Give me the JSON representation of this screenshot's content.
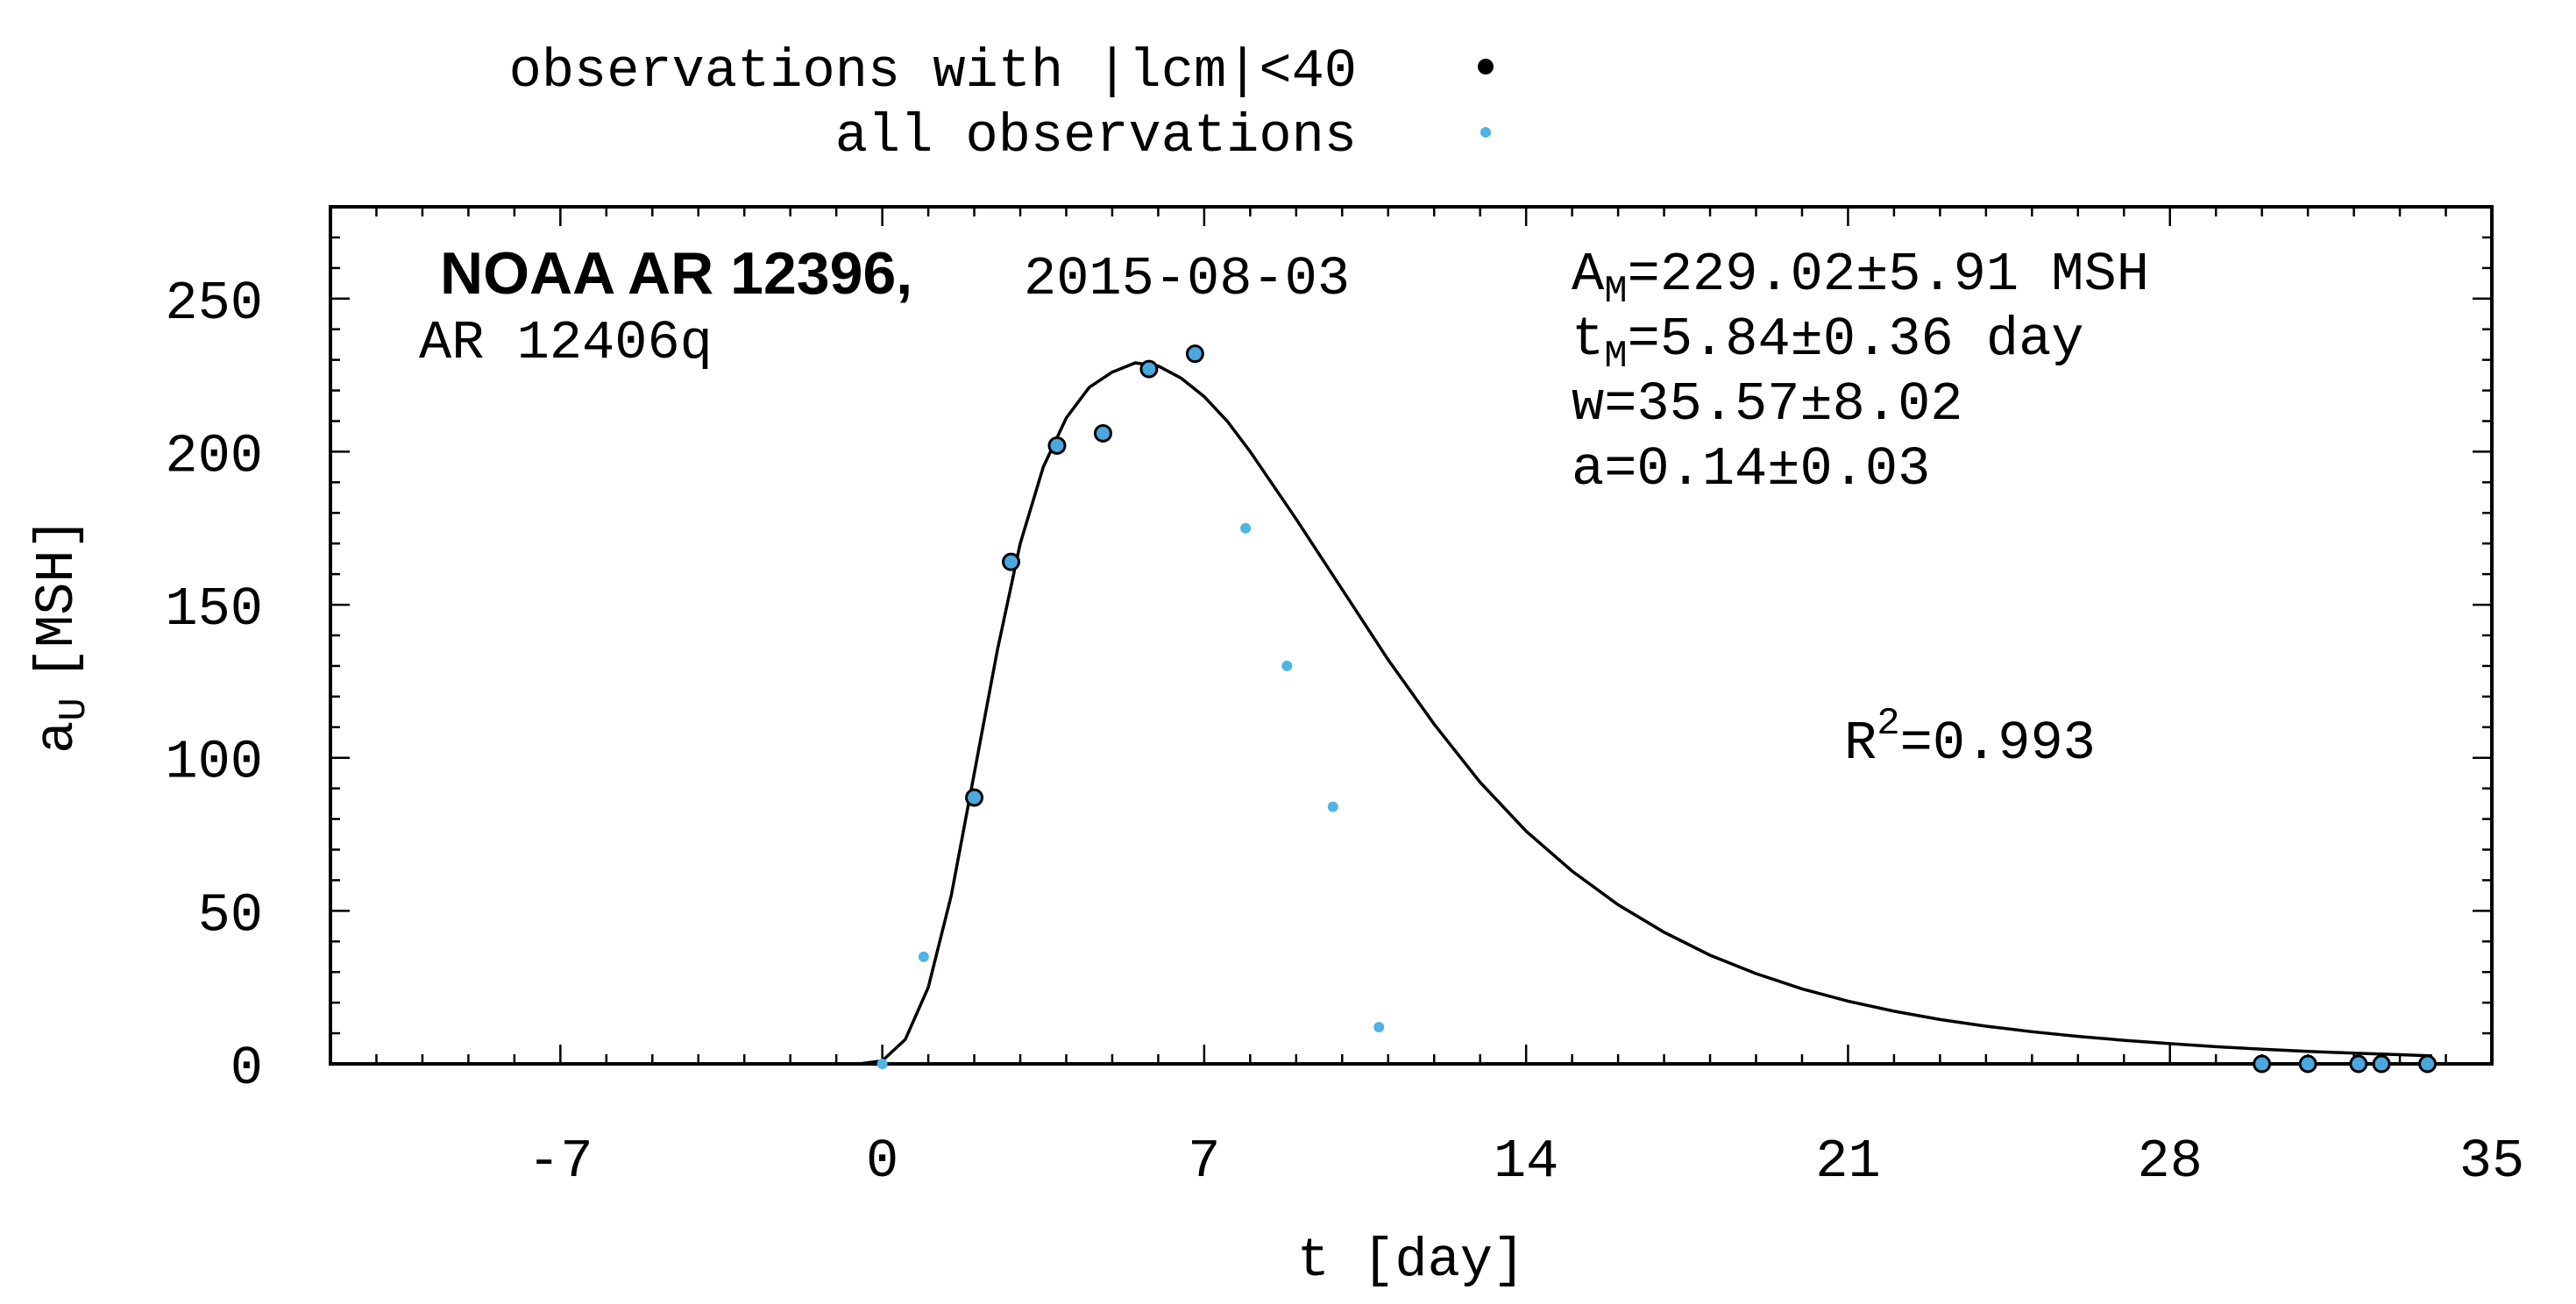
{
  "chart_data": {
    "type": "scatter",
    "title": "NOAA AR 12396,",
    "date": "2015-08-03",
    "subtitle": "AR 12406q",
    "xlabel": "t [day]",
    "ylabel_main": "a",
    "ylabel_sub": "U",
    "ylabel_unit": "[MSH]",
    "xlim": [
      -12,
      35
    ],
    "ylim": [
      0,
      280
    ],
    "xticks": [
      -7,
      0,
      7,
      14,
      21,
      28,
      35
    ],
    "yticks": [
      0,
      50,
      100,
      150,
      200,
      250
    ],
    "legend": {
      "placement": "top",
      "entries": [
        {
          "label": "observations with |lcm|<40",
          "marker": "black-dot"
        },
        {
          "label": "all observations",
          "marker": "blue-dot"
        }
      ]
    },
    "fit_params": [
      {
        "main": "A",
        "sub": "M",
        "rest": "=229.02±5.91 MSH"
      },
      {
        "main": "t",
        "sub": "M",
        "rest": "=5.84±0.36 day"
      },
      {
        "main": "w",
        "sub": "",
        "rest": "=35.57±8.02"
      },
      {
        "main": "a",
        "sub": "",
        "rest": "=0.14±0.03"
      }
    ],
    "r2": {
      "base": "R",
      "sup": "2",
      "rest": "=0.993"
    },
    "series": [
      {
        "role": "observations with |lcm|<40",
        "color": "#4aa8de",
        "edge": "#000000",
        "points": [
          [
            2.0,
            87
          ],
          [
            2.8,
            164
          ],
          [
            3.8,
            202
          ],
          [
            4.8,
            206
          ],
          [
            5.8,
            227
          ],
          [
            6.8,
            232
          ],
          [
            30.0,
            0
          ],
          [
            31.0,
            0
          ],
          [
            32.1,
            0
          ],
          [
            32.6,
            0
          ],
          [
            33.6,
            0
          ]
        ]
      },
      {
        "role": "all observations",
        "color": "#4fb3e3",
        "points": [
          [
            0.0,
            0
          ],
          [
            0.9,
            35
          ],
          [
            7.9,
            175
          ],
          [
            8.8,
            130
          ],
          [
            9.8,
            84
          ],
          [
            10.8,
            12
          ]
        ]
      }
    ],
    "fit_curve": {
      "color": "#000000",
      "points": [
        [
          -12,
          0
        ],
        [
          -0.5,
          0
        ],
        [
          0,
          1
        ],
        [
          0.5,
          8
        ],
        [
          1,
          25
        ],
        [
          1.5,
          55
        ],
        [
          2,
          95
        ],
        [
          2.5,
          135
        ],
        [
          3,
          170
        ],
        [
          3.5,
          195
        ],
        [
          4,
          211
        ],
        [
          4.5,
          221
        ],
        [
          5,
          226
        ],
        [
          5.5,
          229
        ],
        [
          6,
          228
        ],
        [
          6.5,
          224
        ],
        [
          7,
          218
        ],
        [
          7.5,
          210
        ],
        [
          8,
          200
        ],
        [
          9,
          178
        ],
        [
          10,
          155
        ],
        [
          11,
          132
        ],
        [
          12,
          111
        ],
        [
          13,
          92
        ],
        [
          14,
          76
        ],
        [
          15,
          63
        ],
        [
          16,
          52
        ],
        [
          17,
          43
        ],
        [
          18,
          35.5
        ],
        [
          19,
          29.5
        ],
        [
          20,
          24.5
        ],
        [
          21,
          20.5
        ],
        [
          22,
          17.2
        ],
        [
          23,
          14.5
        ],
        [
          24,
          12.3
        ],
        [
          25,
          10.5
        ],
        [
          26,
          9
        ],
        [
          27,
          7.7
        ],
        [
          28,
          6.6
        ],
        [
          29,
          5.6
        ],
        [
          30,
          4.8
        ],
        [
          31,
          4.1
        ],
        [
          32,
          3.5
        ],
        [
          33,
          3
        ],
        [
          33.7,
          2.6
        ]
      ]
    }
  }
}
